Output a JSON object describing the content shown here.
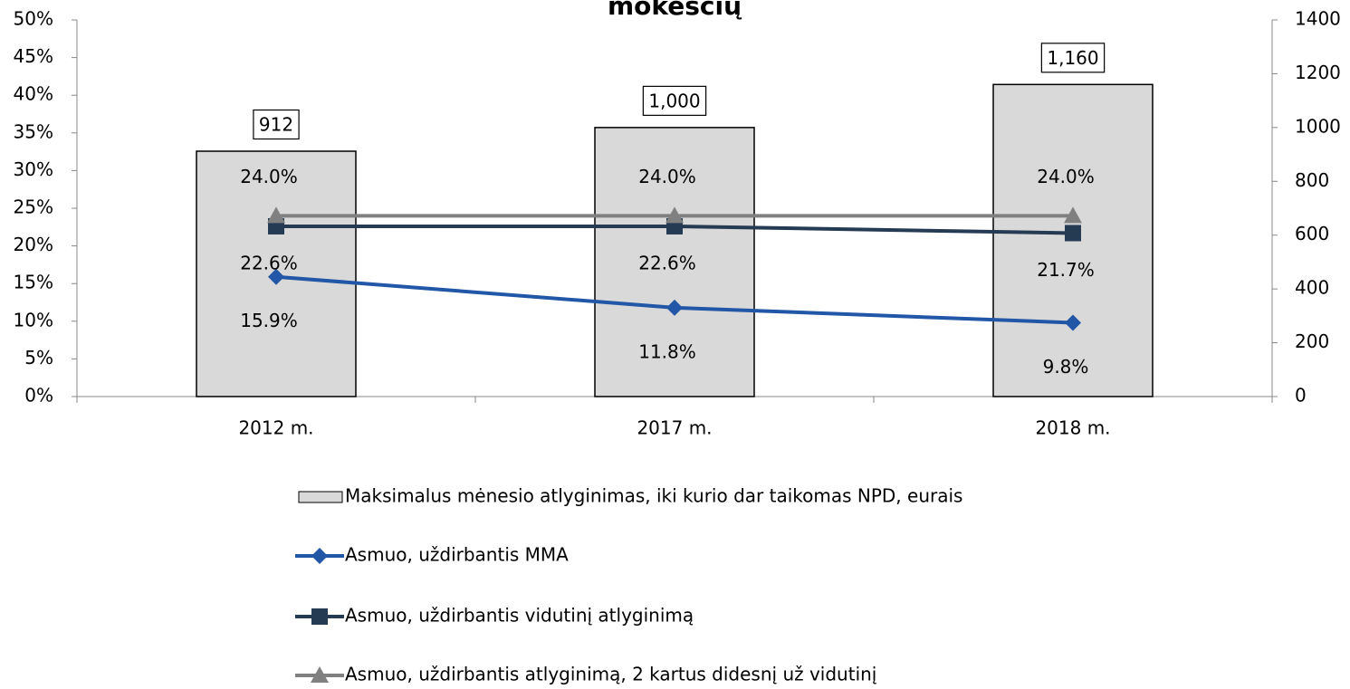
{
  "chart_data": {
    "type": "bar-line",
    "title": "mokesčių",
    "categories": [
      "2012 m.",
      "2017 m.",
      "2018 m."
    ],
    "ylim": [
      0,
      50
    ],
    "yticks": [
      {
        "value": 0,
        "label": "0%"
      },
      {
        "value": 5,
        "label": "5%"
      },
      {
        "value": 10,
        "label": "10%"
      },
      {
        "value": 15,
        "label": "15%"
      },
      {
        "value": 20,
        "label": "20%"
      },
      {
        "value": 25,
        "label": "25%"
      },
      {
        "value": 30,
        "label": "30%"
      },
      {
        "value": 35,
        "label": "35%"
      },
      {
        "value": 40,
        "label": "40%"
      },
      {
        "value": 45,
        "label": "45%"
      },
      {
        "value": 50,
        "label": "50%"
      }
    ],
    "y2lim": [
      0,
      1400
    ],
    "y2ticks": [
      0,
      200,
      400,
      600,
      800,
      1000,
      1200,
      1400
    ],
    "series": [
      {
        "name": "Maksimalus mėnesio atlyginimas, iki kurio dar taikomas NPD, eurais",
        "type": "bar",
        "axis": "y2",
        "color": "#d9d9d9",
        "values": [
          912,
          1000,
          1160
        ],
        "value_labels": [
          "912",
          "1,000",
          "1,160"
        ]
      },
      {
        "name": "Asmuo, uždirbantis MMA",
        "type": "line",
        "marker": "diamond",
        "color": "#2256a6",
        "values": [
          15.9,
          11.8,
          9.8
        ],
        "value_labels": [
          "15.9%",
          "11.8%",
          "9.8%"
        ]
      },
      {
        "name": "Asmuo, uždirbantis vidutinį atlyginimą",
        "type": "line",
        "marker": "square",
        "color": "#243b53",
        "values": [
          22.6,
          22.6,
          21.7
        ],
        "value_labels": [
          "22.6%",
          "22.6%",
          "21.7%"
        ]
      },
      {
        "name": "Asmuo, uždirbantis atlyginimą, 2 kartus didesnį už vidutinį",
        "type": "line",
        "marker": "triangle",
        "color": "#808080",
        "values": [
          24.0,
          24.0,
          24.0
        ],
        "value_labels": [
          "24.0%",
          "24.0%",
          "24.0%"
        ]
      }
    ]
  }
}
